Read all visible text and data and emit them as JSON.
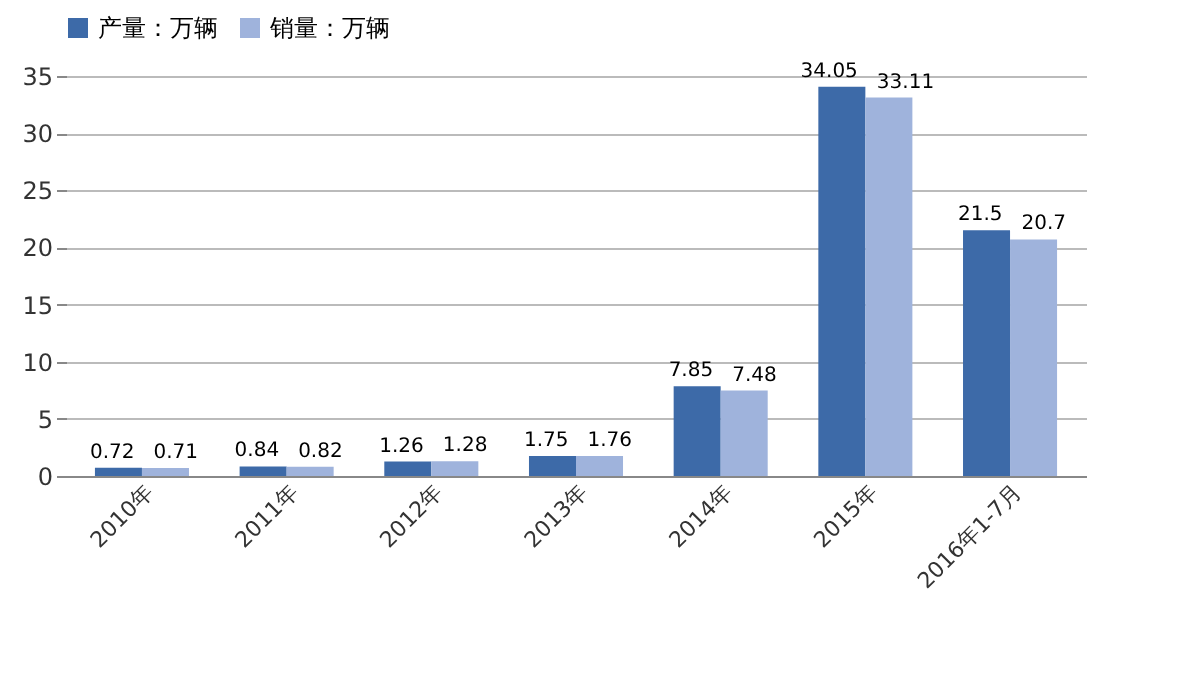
{
  "chart_data": {
    "type": "bar",
    "categories": [
      "2010年",
      "2011年",
      "2012年",
      "2013年",
      "2014年",
      "2015年",
      "2016年1-7月"
    ],
    "series": [
      {
        "name": "产量：万辆",
        "color": "#3d6aa8",
        "values": [
          0.72,
          0.84,
          1.26,
          1.75,
          7.85,
          34.05,
          21.5
        ]
      },
      {
        "name": "销量：万辆",
        "color": "#9fb3dc",
        "values": [
          0.71,
          0.82,
          1.28,
          1.76,
          7.48,
          33.11,
          20.7
        ]
      }
    ],
    "ylim": [
      0,
      35
    ],
    "yticks": [
      0,
      5,
      10,
      15,
      20,
      25,
      30,
      35
    ],
    "grid": "y",
    "legend": "top",
    "data_labels": true
  }
}
